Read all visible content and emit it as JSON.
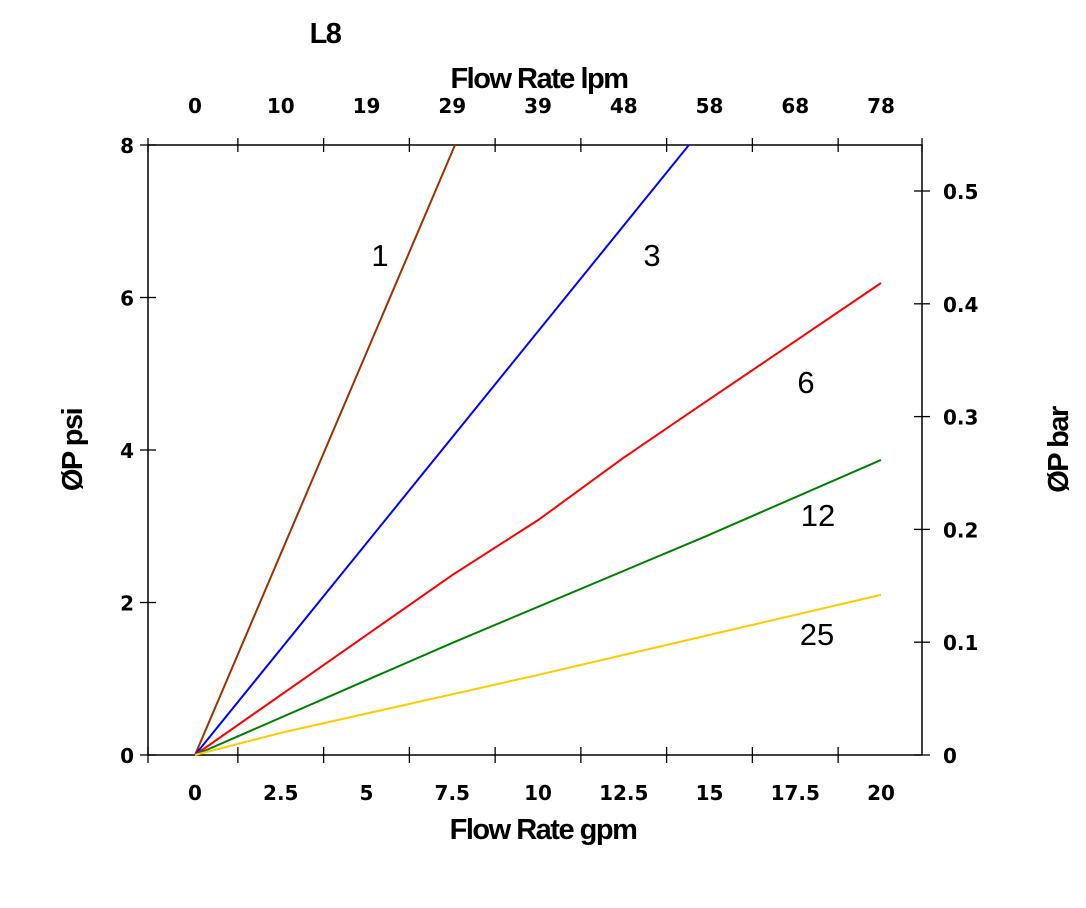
{
  "chart_data": {
    "type": "line",
    "title": "L8",
    "xlabel": "Flow Rate gpm",
    "ylabel": "ØP psi",
    "x2label": "Flow Rate lpm",
    "y2label": "ØP bar",
    "xlim": [
      -1.37,
      21.2
    ],
    "ylim": [
      0,
      8
    ],
    "y2lim": [
      0,
      0.54
    ],
    "xticks": [
      "0",
      "2.5",
      "5",
      "7.5",
      "10",
      "12.5",
      "15",
      "17.5",
      "20"
    ],
    "xtick_values": [
      0,
      2.5,
      5,
      7.5,
      10,
      12.5,
      15,
      17.5,
      20
    ],
    "x2ticks": [
      "0",
      "10",
      "19",
      "29",
      "39",
      "48",
      "58",
      "68",
      "78"
    ],
    "yticks": [
      "0",
      "2",
      "4",
      "6",
      "8"
    ],
    "ytick_values": [
      0,
      2,
      4,
      6,
      8
    ],
    "y2ticks": [
      "0",
      "0.1",
      "0.2",
      "0.3",
      "0.4",
      "0.5"
    ],
    "y2tick_values": [
      0,
      0.1,
      0.2,
      0.3,
      0.4,
      0.5
    ],
    "grid": false,
    "legend": "none (inline labels on lines)",
    "series": [
      {
        "name": "1",
        "color": "#993300",
        "x": [
          0,
          7.58
        ],
        "y": [
          0,
          8
        ]
      },
      {
        "name": "3",
        "color": "#0000ff",
        "x": [
          0,
          14.4
        ],
        "y": [
          0,
          8
        ]
      },
      {
        "name": "6",
        "color": "#ff0000",
        "x": [
          0,
          7.5,
          10,
          12.5,
          14.85,
          20
        ],
        "y": [
          0,
          2.36,
          3.08,
          3.9,
          4.62,
          6.19
        ]
      },
      {
        "name": "12",
        "color": "#008000",
        "x": [
          0,
          7.5,
          14.85,
          20
        ],
        "y": [
          0,
          1.47,
          2.86,
          3.87
        ]
      },
      {
        "name": "25",
        "color": "#ffcc00",
        "x": [
          0,
          2.5,
          10,
          20
        ],
        "y": [
          0,
          0.29,
          1.05,
          2.1
        ]
      }
    ]
  }
}
